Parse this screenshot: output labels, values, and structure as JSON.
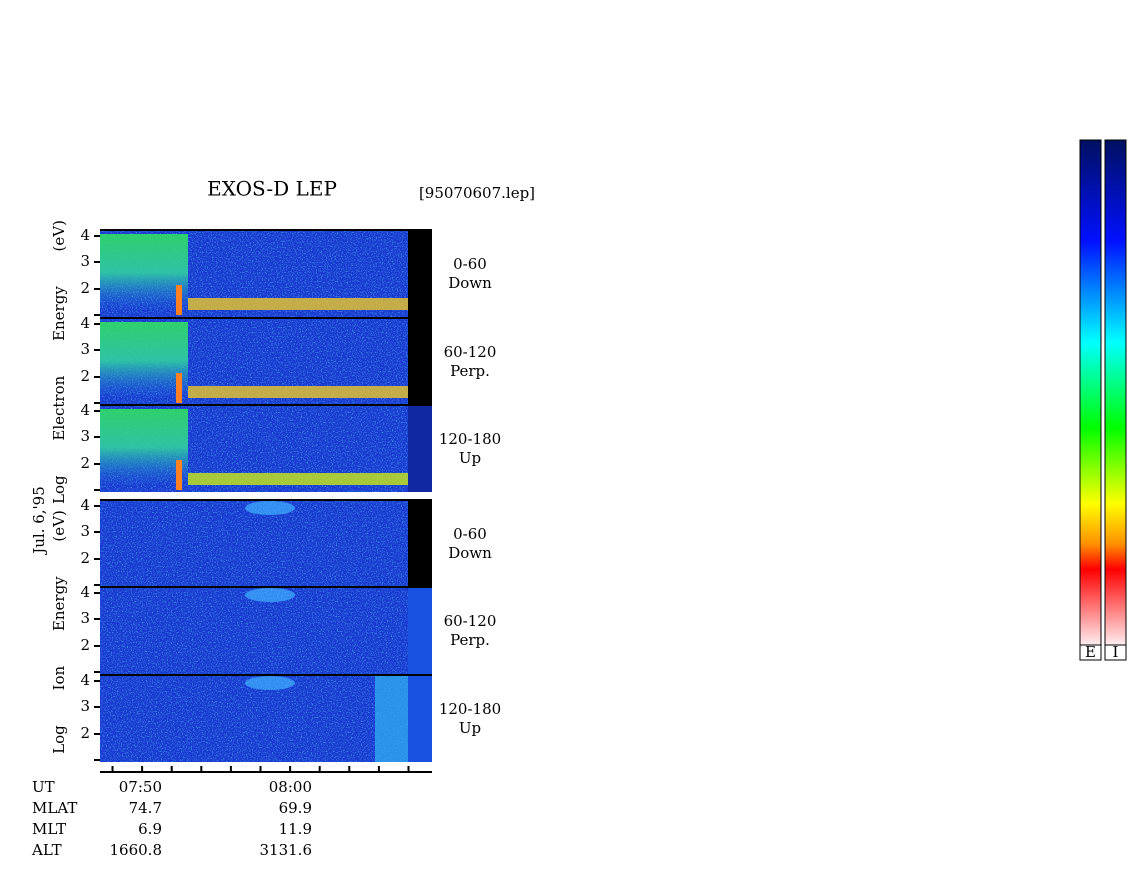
{
  "header": {
    "title": "EXOS-D LEP",
    "file": "[95070607.lep]"
  },
  "date": "Jul. 6,'95",
  "groups": [
    {
      "label": "Log Electron Energy (eV)",
      "panels": [
        {
          "pitch": "0-60",
          "direction": "Down",
          "yticks": [
            4,
            3,
            2
          ]
        },
        {
          "pitch": "60-120",
          "direction": "Perp.",
          "yticks": [
            4,
            3,
            2
          ]
        },
        {
          "pitch": "120-180",
          "direction": "Up",
          "yticks": [
            4,
            3,
            2
          ]
        }
      ]
    },
    {
      "label": "Log Ion Energy (eV)",
      "panels": [
        {
          "pitch": "0-60",
          "direction": "Down",
          "yticks": [
            4,
            3,
            2
          ]
        },
        {
          "pitch": "60-120",
          "direction": "Perp.",
          "yticks": [
            4,
            3,
            2
          ]
        },
        {
          "pitch": "120-180",
          "direction": "Up",
          "yticks": [
            4,
            3,
            2
          ]
        }
      ]
    }
  ],
  "ephemeris": {
    "rows": [
      {
        "name": "UT",
        "values": [
          "07:50",
          "08:00"
        ]
      },
      {
        "name": "MLAT",
        "values": [
          "74.7",
          "69.9"
        ]
      },
      {
        "name": "MLT",
        "values": [
          "6.9",
          "11.9"
        ]
      },
      {
        "name": "ALT",
        "values": [
          "1660.8",
          "3131.6"
        ]
      }
    ]
  },
  "colorbars": [
    "E",
    "I"
  ]
}
